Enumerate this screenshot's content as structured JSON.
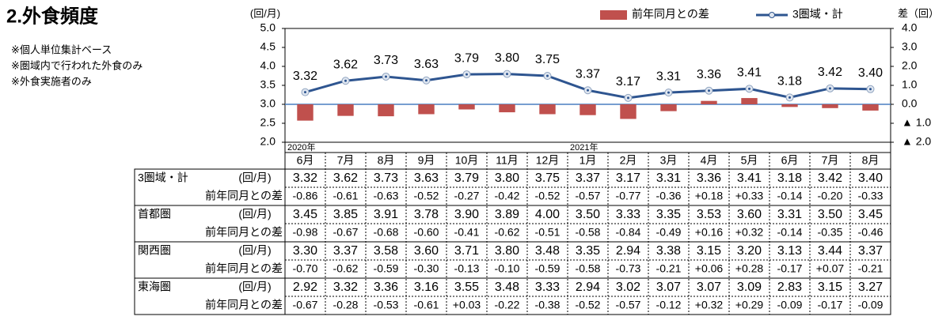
{
  "title": "2.外食頻度",
  "notes": [
    "※個人単位集計ベース",
    "※圏域内で行われた外食のみ",
    "※外食実施者のみ"
  ],
  "chart_data": {
    "type": "line",
    "y_label": "(回/月)",
    "y2_label": "差（回）",
    "categories": [
      "6月",
      "7月",
      "8月",
      "9月",
      "10月",
      "11月",
      "12月",
      "1月",
      "2月",
      "3月",
      "4月",
      "5月",
      "6月",
      "7月",
      "8月"
    ],
    "year_labels": [
      "2020年",
      null,
      null,
      null,
      null,
      null,
      null,
      "2021年",
      null,
      null,
      null,
      null,
      null,
      null,
      null
    ],
    "ylim": [
      2,
      5
    ],
    "yticks": [
      {
        "value": 2,
        "label": "2.0"
      },
      {
        "value": 2.5,
        "label": "2.5"
      },
      {
        "value": 3,
        "label": "3.0"
      },
      {
        "value": 3.5,
        "label": "3.5"
      },
      {
        "value": 4,
        "label": "4.0"
      },
      {
        "value": 4.5,
        "label": "4.5"
      },
      {
        "value": 5,
        "label": "5.0"
      }
    ],
    "y2lim": [
      -2,
      4
    ],
    "y2ticks": [
      {
        "value": -2,
        "label": "▲ 2.0"
      },
      {
        "value": -1,
        "label": "▲ 1.0"
      },
      {
        "value": 0,
        "label": "0.0"
      },
      {
        "value": 1,
        "label": "1.0"
      },
      {
        "value": 2,
        "label": "2.0"
      },
      {
        "value": 3,
        "label": "3.0"
      },
      {
        "value": 4,
        "label": "4.0"
      }
    ],
    "legend": "top-right",
    "series": [
      {
        "name": "前年同月との差",
        "type": "bar",
        "axis": "y2",
        "color": "#c0504d",
        "values": [
          -0.86,
          -0.61,
          -0.63,
          -0.52,
          -0.27,
          -0.42,
          -0.52,
          -0.57,
          -0.77,
          -0.36,
          0.18,
          0.33,
          -0.14,
          -0.2,
          -0.33
        ]
      },
      {
        "name": "3圏域・計",
        "type": "line",
        "color": "#2e5590",
        "values": [
          3.32,
          3.62,
          3.73,
          3.63,
          3.79,
          3.8,
          3.75,
          3.37,
          3.17,
          3.31,
          3.36,
          3.41,
          3.18,
          3.42,
          3.4
        ],
        "value_labels": [
          "3.32",
          "3.62",
          "3.73",
          "3.63",
          "3.79",
          "3.80",
          "3.75",
          "3.37",
          "3.17",
          "3.31",
          "3.36",
          "3.41",
          "3.18",
          "3.42",
          "3.40"
        ]
      }
    ]
  },
  "table": {
    "groups": [
      {
        "name": "3圏域・計",
        "unit": "(回/月)",
        "values": [
          "3.32",
          "3.62",
          "3.73",
          "3.63",
          "3.79",
          "3.80",
          "3.75",
          "3.37",
          "3.17",
          "3.31",
          "3.36",
          "3.41",
          "3.18",
          "3.42",
          "3.40"
        ],
        "diff_label": "前年同月との差",
        "diffs": [
          "-0.86",
          "-0.61",
          "-0.63",
          "-0.52",
          "-0.27",
          "-0.42",
          "-0.52",
          "-0.57",
          "-0.77",
          "-0.36",
          "+0.18",
          "+0.33",
          "-0.14",
          "-0.20",
          "-0.33"
        ]
      },
      {
        "name": "首都圏",
        "unit": "(回/月)",
        "values": [
          "3.45",
          "3.85",
          "3.91",
          "3.78",
          "3.90",
          "3.89",
          "4.00",
          "3.50",
          "3.33",
          "3.35",
          "3.53",
          "3.60",
          "3.31",
          "3.50",
          "3.45"
        ],
        "diff_label": "前年同月との差",
        "diffs": [
          "-0.98",
          "-0.67",
          "-0.68",
          "-0.60",
          "-0.41",
          "-0.62",
          "-0.51",
          "-0.58",
          "-0.84",
          "-0.49",
          "+0.16",
          "+0.32",
          "-0.14",
          "-0.35",
          "-0.46"
        ]
      },
      {
        "name": "関西圏",
        "unit": "(回/月)",
        "values": [
          "3.30",
          "3.37",
          "3.58",
          "3.60",
          "3.71",
          "3.80",
          "3.48",
          "3.35",
          "2.94",
          "3.38",
          "3.15",
          "3.20",
          "3.13",
          "3.44",
          "3.37"
        ],
        "diff_label": "前年同月との差",
        "diffs": [
          "-0.70",
          "-0.62",
          "-0.59",
          "-0.30",
          "-0.13",
          "-0.10",
          "-0.59",
          "-0.58",
          "-0.73",
          "-0.21",
          "+0.06",
          "+0.28",
          "-0.17",
          "+0.07",
          "-0.21"
        ]
      },
      {
        "name": "東海圏",
        "unit": "(回/月)",
        "values": [
          "2.92",
          "3.32",
          "3.36",
          "3.16",
          "3.55",
          "3.48",
          "3.33",
          "2.94",
          "3.02",
          "3.07",
          "3.07",
          "3.09",
          "2.83",
          "3.15",
          "3.27"
        ],
        "diff_label": "前年同月との差",
        "diffs": [
          "-0.67",
          "-0.28",
          "-0.53",
          "-0.61",
          "+0.03",
          "-0.22",
          "-0.38",
          "-0.52",
          "-0.57",
          "-0.12",
          "+0.32",
          "+0.29",
          "-0.09",
          "-0.17",
          "-0.09"
        ]
      }
    ]
  }
}
